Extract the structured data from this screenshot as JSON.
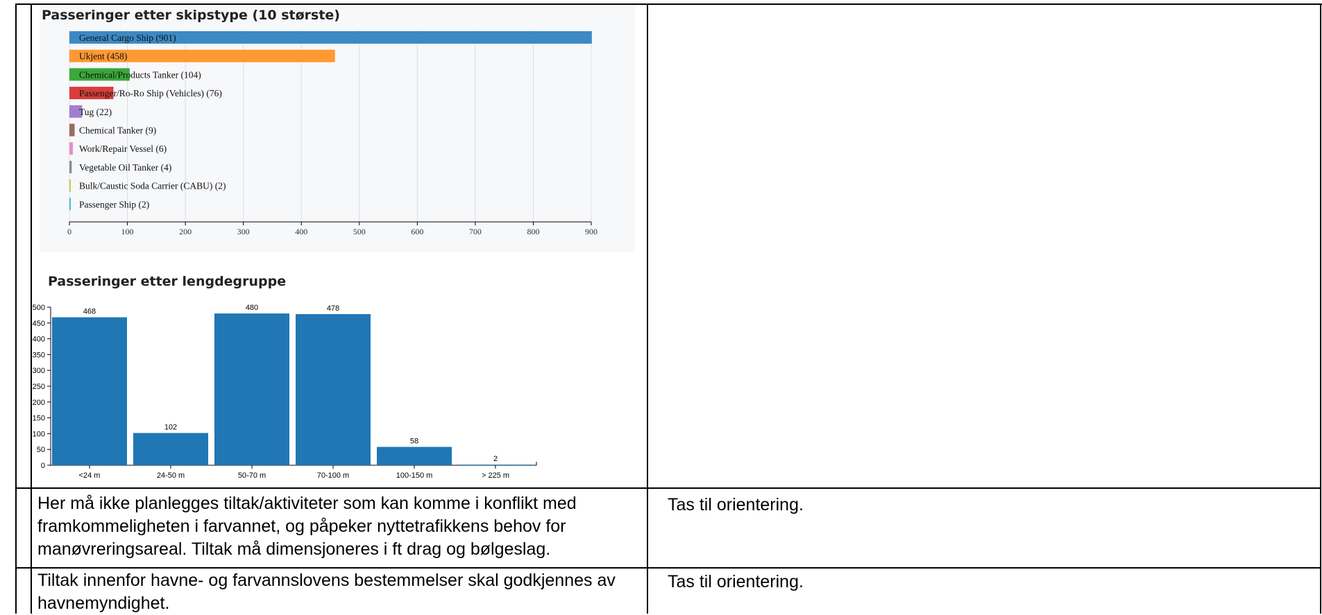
{
  "charts": {
    "skipstype": {
      "title": "Passeringer etter skipstype (10 største)",
      "chart_data": {
        "type": "bar",
        "orientation": "horizontal",
        "title": "Passeringer etter skipstype (10 største)",
        "categories": [
          "General Cargo Ship",
          "Ukjent",
          "Chemical/Products Tanker",
          "Passenger/Ro-Ro Ship (Vehicles)",
          "Tug",
          "Chemical Tanker",
          "Work/Repair Vessel",
          "Vegetable Oil Tanker",
          "Bulk/Caustic Soda Carrier (CABU)",
          "Passenger Ship"
        ],
        "values": [
          901,
          458,
          104,
          76,
          22,
          9,
          6,
          4,
          2,
          2
        ],
        "colors": [
          "#3d89c4",
          "#ff9933",
          "#3aa83a",
          "#d93d3d",
          "#a27fcc",
          "#9a6b60",
          "#e58fca",
          "#8c8c8c",
          "#c9c94a",
          "#3cc4d4"
        ],
        "xlim": [
          0,
          900
        ],
        "xticks": [
          0,
          100,
          200,
          300,
          400,
          500,
          600,
          700,
          800,
          900
        ],
        "grid": true
      }
    },
    "lengde": {
      "title": "Passeringer etter lengdegruppe",
      "chart_data": {
        "type": "bar",
        "title": "Passeringer etter lengdegruppe",
        "categories": [
          "<24 m",
          "24-50 m",
          "50-70 m",
          "70-100 m",
          "100-150 m",
          "> 225 m"
        ],
        "values": [
          468,
          102,
          480,
          478,
          58,
          2
        ],
        "color": "#2177b4",
        "ylim": [
          0,
          500
        ],
        "yticks": [
          0,
          50,
          100,
          150,
          200,
          250,
          300,
          350,
          400,
          450,
          500
        ]
      }
    }
  },
  "rows": [
    {
      "text": "Her må ikke planlegges tiltak/aktiviteter som kan komme i konflikt med framkommeligheten i farvannet, og påpeker nyttetrafikkens behov for manøvreringsareal. Tiltak må dimensjoneres i ft drag og bølgeslag.",
      "response": "Tas til orientering."
    },
    {
      "text": "Tiltak innenfor havne- og farvannslovens bestemmelser skal godkjennes av havnemyndighet.",
      "response": "Tas til orientering."
    }
  ]
}
